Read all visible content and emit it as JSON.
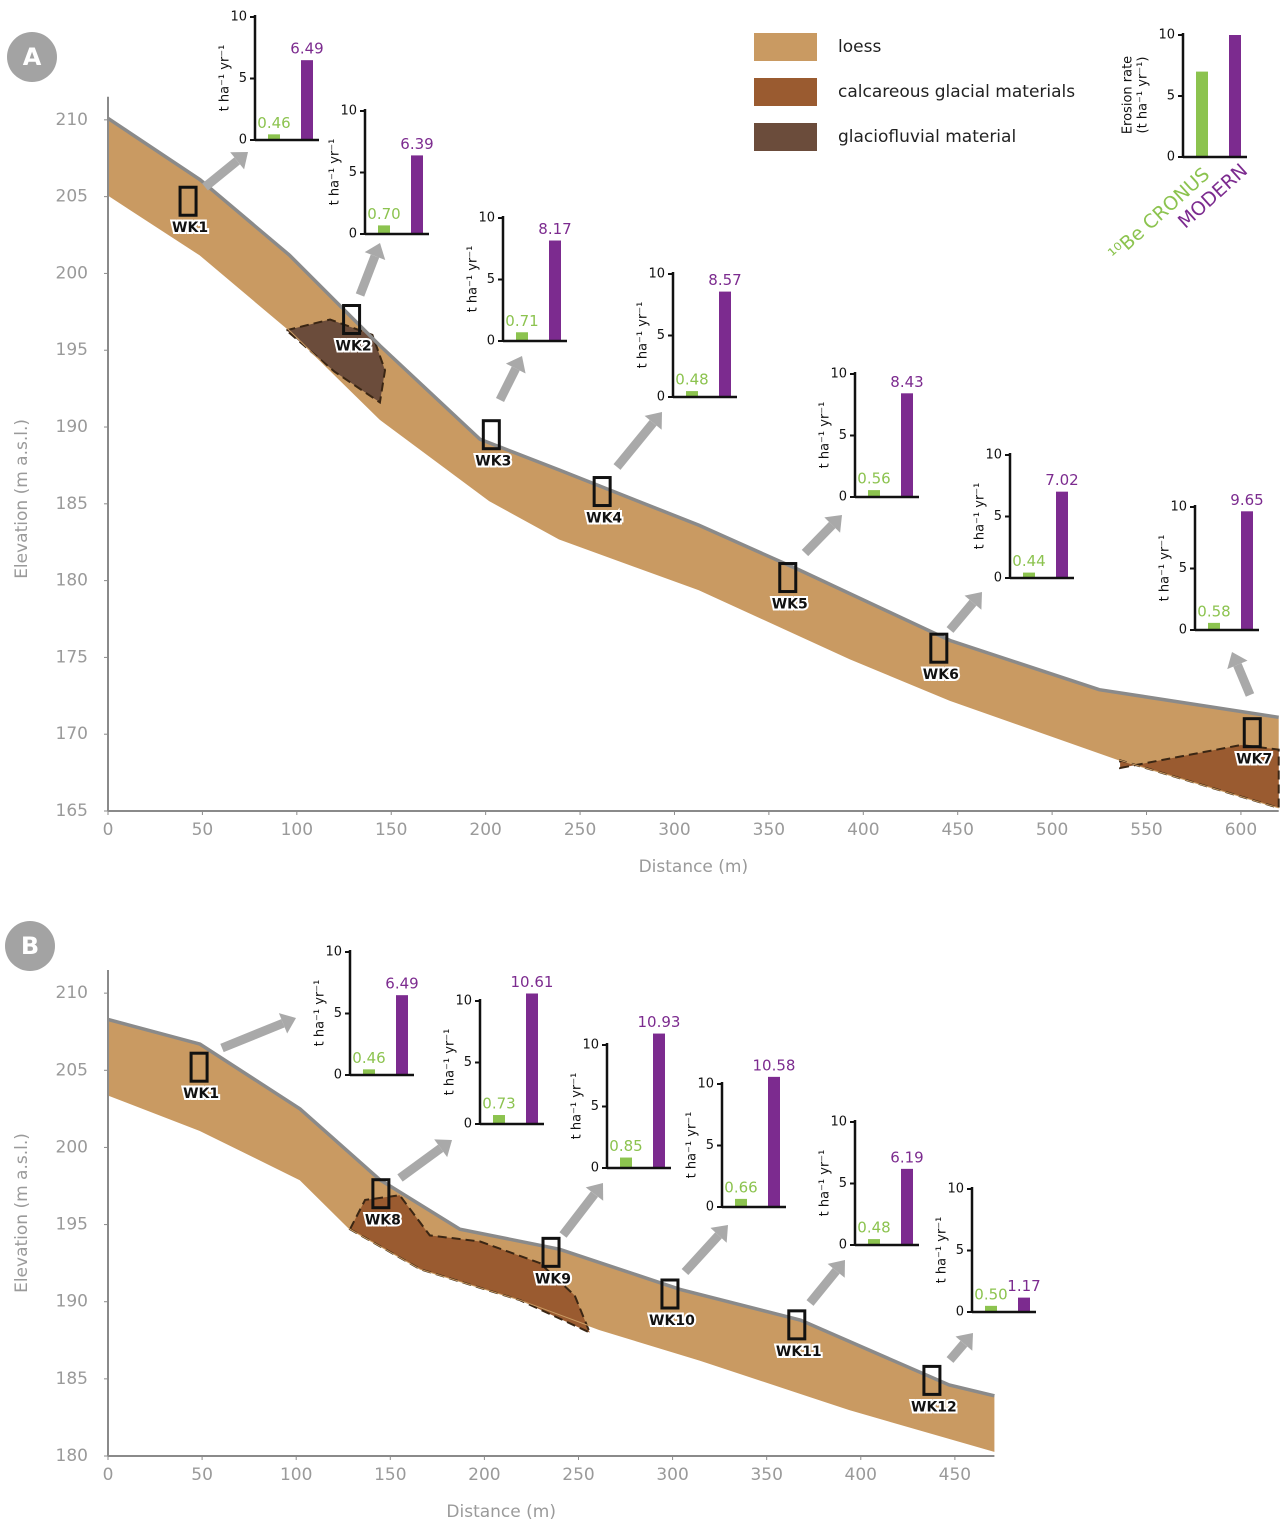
{
  "chart_data": [
    {
      "type": "profile",
      "panel": "A",
      "xlabel": "Distance (m)",
      "ylabel": "Elevation (m a.s.l.)",
      "xlim": [
        0,
        620
      ],
      "ylim": [
        165,
        211.5
      ],
      "xticks": [
        0,
        50,
        100,
        150,
        200,
        250,
        300,
        350,
        400,
        450,
        500,
        550,
        600
      ],
      "yticks": [
        165,
        170,
        175,
        180,
        185,
        190,
        195,
        200,
        205,
        210
      ],
      "legend": [
        {
          "label": "loess",
          "color": "#c99a62"
        },
        {
          "label": "calcareous glacial materials",
          "color": "#9a5b30"
        },
        {
          "label": "glaciofluvial material",
          "color": "#6b4c3b"
        }
      ],
      "surface": {
        "x": [
          0,
          48.7,
          96,
          144,
          197,
          239,
          313,
          366,
          446,
          525,
          620
        ],
        "y": [
          210.1,
          206.1,
          201.2,
          195.3,
          189.2,
          187.2,
          183.6,
          180.7,
          176.1,
          172.9,
          171.1
        ]
      },
      "base": {
        "x": [
          0,
          48.7,
          96,
          144,
          202,
          239,
          313,
          393,
          446,
          536,
          620
        ],
        "y": [
          205.1,
          201.2,
          196.3,
          190.5,
          185.2,
          182.7,
          179.4,
          174.9,
          172.2,
          168.3,
          165.2
        ]
      },
      "layers": [
        {
          "color": "#6b4c3b",
          "x": [
            94.5,
            117.6,
            140,
            146.7,
            144,
            120
          ],
          "y": [
            196.3,
            197.0,
            196.0,
            193.7,
            191.6,
            193.6
          ]
        },
        {
          "color": "#9a5b30",
          "x": [
            536,
            600,
            620,
            620,
            536
          ],
          "y": [
            167.8,
            169.3,
            169.0,
            165.2,
            168.3
          ]
        }
      ],
      "sites": [
        {
          "label": "WK1",
          "x": 42.4,
          "y": 204.7,
          "chart": {
            "type": "bar",
            "ylabel": "t ha⁻¹ yr⁻¹",
            "values": [
              0.46,
              6.49
            ],
            "value_labels": [
              "0.46",
              "6.49"
            ],
            "ylim": [
              0,
              10
            ],
            "yticks": [
              0,
              5,
              10
            ]
          }
        },
        {
          "label": "WK2",
          "x": 129,
          "y": 197.0,
          "chart": {
            "type": "bar",
            "ylabel": "t ha⁻¹ yr⁻¹",
            "values": [
              0.7,
              6.39
            ],
            "value_labels": [
              "0.70",
              "6.39"
            ],
            "ylim": [
              0,
              10
            ],
            "yticks": [
              0,
              5,
              10
            ]
          }
        },
        {
          "label": "WK3",
          "x": 203,
          "y": 189.5,
          "chart": {
            "type": "bar",
            "ylabel": "t ha⁻¹ yr⁻¹",
            "values": [
              0.71,
              8.17
            ],
            "value_labels": [
              "0.71",
              "8.17"
            ],
            "ylim": [
              0,
              10
            ],
            "yticks": [
              0,
              5,
              10
            ]
          }
        },
        {
          "label": "WK4",
          "x": 261.7,
          "y": 185.8,
          "chart": {
            "type": "bar",
            "ylabel": "t ha⁻¹ yr⁻¹",
            "values": [
              0.48,
              8.57
            ],
            "value_labels": [
              "0.48",
              "8.57"
            ],
            "ylim": [
              0,
              10
            ],
            "yticks": [
              0,
              5,
              10
            ]
          }
        },
        {
          "label": "WK5",
          "x": 360,
          "y": 180.2,
          "chart": {
            "type": "bar",
            "ylabel": "t ha⁻¹ yr⁻¹",
            "values": [
              0.56,
              8.43
            ],
            "value_labels": [
              "0.56",
              "8.43"
            ],
            "ylim": [
              0,
              10
            ],
            "yticks": [
              0,
              5,
              10
            ]
          }
        },
        {
          "label": "WK6",
          "x": 440,
          "y": 175.6,
          "chart": {
            "type": "bar",
            "ylabel": "t ha⁻¹ yr⁻¹",
            "values": [
              0.44,
              7.02
            ],
            "value_labels": [
              "0.44",
              "7.02"
            ],
            "ylim": [
              0,
              10
            ],
            "yticks": [
              0,
              5,
              10
            ]
          }
        },
        {
          "label": "WK7",
          "x": 606,
          "y": 170.1,
          "chart": {
            "type": "bar",
            "ylabel": "t ha⁻¹ yr⁻¹",
            "values": [
              0.58,
              9.65
            ],
            "value_labels": [
              "0.58",
              "9.65"
            ],
            "ylim": [
              0,
              10
            ],
            "yticks": [
              0,
              5,
              10
            ]
          }
        }
      ]
    },
    {
      "type": "profile",
      "panel": "B",
      "xlabel": "Distance (m)",
      "ylabel": "Elevation (m a.s.l.)",
      "xlim": [
        0,
        471
      ],
      "ylim": [
        180,
        211.5
      ],
      "xticks": [
        0,
        50,
        100,
        150,
        200,
        250,
        300,
        350,
        400,
        450
      ],
      "yticks": [
        180,
        185,
        190,
        195,
        200,
        205,
        210
      ],
      "surface": {
        "x": [
          0,
          48.9,
          102,
          144.5,
          187,
          240,
          304,
          368,
          447,
          471
        ],
        "y": [
          208.3,
          206.7,
          202.5,
          197.9,
          194.7,
          193.4,
          190.8,
          188.8,
          184.6,
          183.9
        ]
      },
      "base": {
        "x": [
          0,
          48.9,
          102,
          128.6,
          166,
          219,
          261,
          314.6,
          394,
          471
        ],
        "y": [
          203.4,
          201.1,
          197.9,
          194.7,
          192.1,
          190.1,
          188.2,
          186.2,
          183.0,
          180.3
        ]
      },
      "layers": [
        {
          "color": "#9a5b30",
          "x": [
            128.6,
            136.6,
            155,
            171,
            197.7,
            229.5,
            248,
            256,
            219,
            166
          ],
          "y": [
            194.7,
            196.6,
            196.9,
            194.3,
            193.9,
            192.5,
            190.4,
            188.0,
            190.1,
            192.1
          ]
        }
      ],
      "sites": [
        {
          "label": "WK1",
          "x": 48.4,
          "y": 205.2,
          "chart": {
            "type": "bar",
            "ylabel": "t ha⁻¹ yr⁻¹",
            "values": [
              0.46,
              6.49
            ],
            "value_labels": [
              "0.46",
              "6.49"
            ],
            "ylim": [
              0,
              10
            ],
            "yticks": [
              0,
              5,
              10
            ]
          }
        },
        {
          "label": "WK8",
          "x": 145,
          "y": 197.0,
          "chart": {
            "type": "bar",
            "ylabel": "t ha⁻¹ yr⁻¹",
            "values": [
              0.73,
              10.61
            ],
            "value_labels": [
              "0.73",
              "10.61"
            ],
            "ylim": [
              0,
              10
            ],
            "yticks": [
              0,
              5,
              10
            ]
          }
        },
        {
          "label": "WK9",
          "x": 235.4,
          "y": 193.2,
          "chart": {
            "type": "bar",
            "ylabel": "t ha⁻¹ yr⁻¹",
            "values": [
              0.85,
              10.93
            ],
            "value_labels": [
              "0.85",
              "10.93"
            ],
            "ylim": [
              0,
              10
            ],
            "yticks": [
              0,
              5,
              10
            ]
          }
        },
        {
          "label": "WK10",
          "x": 298.6,
          "y": 190.5,
          "chart": {
            "type": "bar",
            "ylabel": "t ha⁻¹ yr⁻¹",
            "values": [
              0.66,
              10.58
            ],
            "value_labels": [
              "0.66",
              "10.58"
            ],
            "ylim": [
              0,
              10
            ],
            "yticks": [
              0,
              5,
              10
            ]
          }
        },
        {
          "label": "WK11",
          "x": 366,
          "y": 188.5,
          "chart": {
            "type": "bar",
            "ylabel": "t ha⁻¹ yr⁻¹",
            "values": [
              0.48,
              6.19
            ],
            "value_labels": [
              "0.48",
              "6.19"
            ],
            "ylim": [
              0,
              10
            ],
            "yticks": [
              0,
              5,
              10
            ]
          }
        },
        {
          "label": "WK12",
          "x": 437.8,
          "y": 184.9,
          "chart": {
            "type": "bar",
            "ylabel": "t ha⁻¹ yr⁻¹",
            "values": [
              0.5,
              1.17
            ],
            "value_labels": [
              "0.50",
              "1.17"
            ],
            "ylim": [
              0,
              10
            ],
            "yticks": [
              0,
              5,
              10
            ]
          }
        }
      ]
    },
    {
      "type": "bar",
      "ylabel": [
        "Erosion rate",
        "(t ha⁻¹ yr⁻¹)"
      ],
      "categories": [
        "¹⁰Be CRONUS",
        "MODERN"
      ],
      "colors": [
        "#8cc34f",
        "#7c2b8f"
      ],
      "values": [
        7,
        10
      ],
      "ylim": [
        0,
        10
      ],
      "yticks": [
        0,
        5,
        10
      ]
    }
  ]
}
